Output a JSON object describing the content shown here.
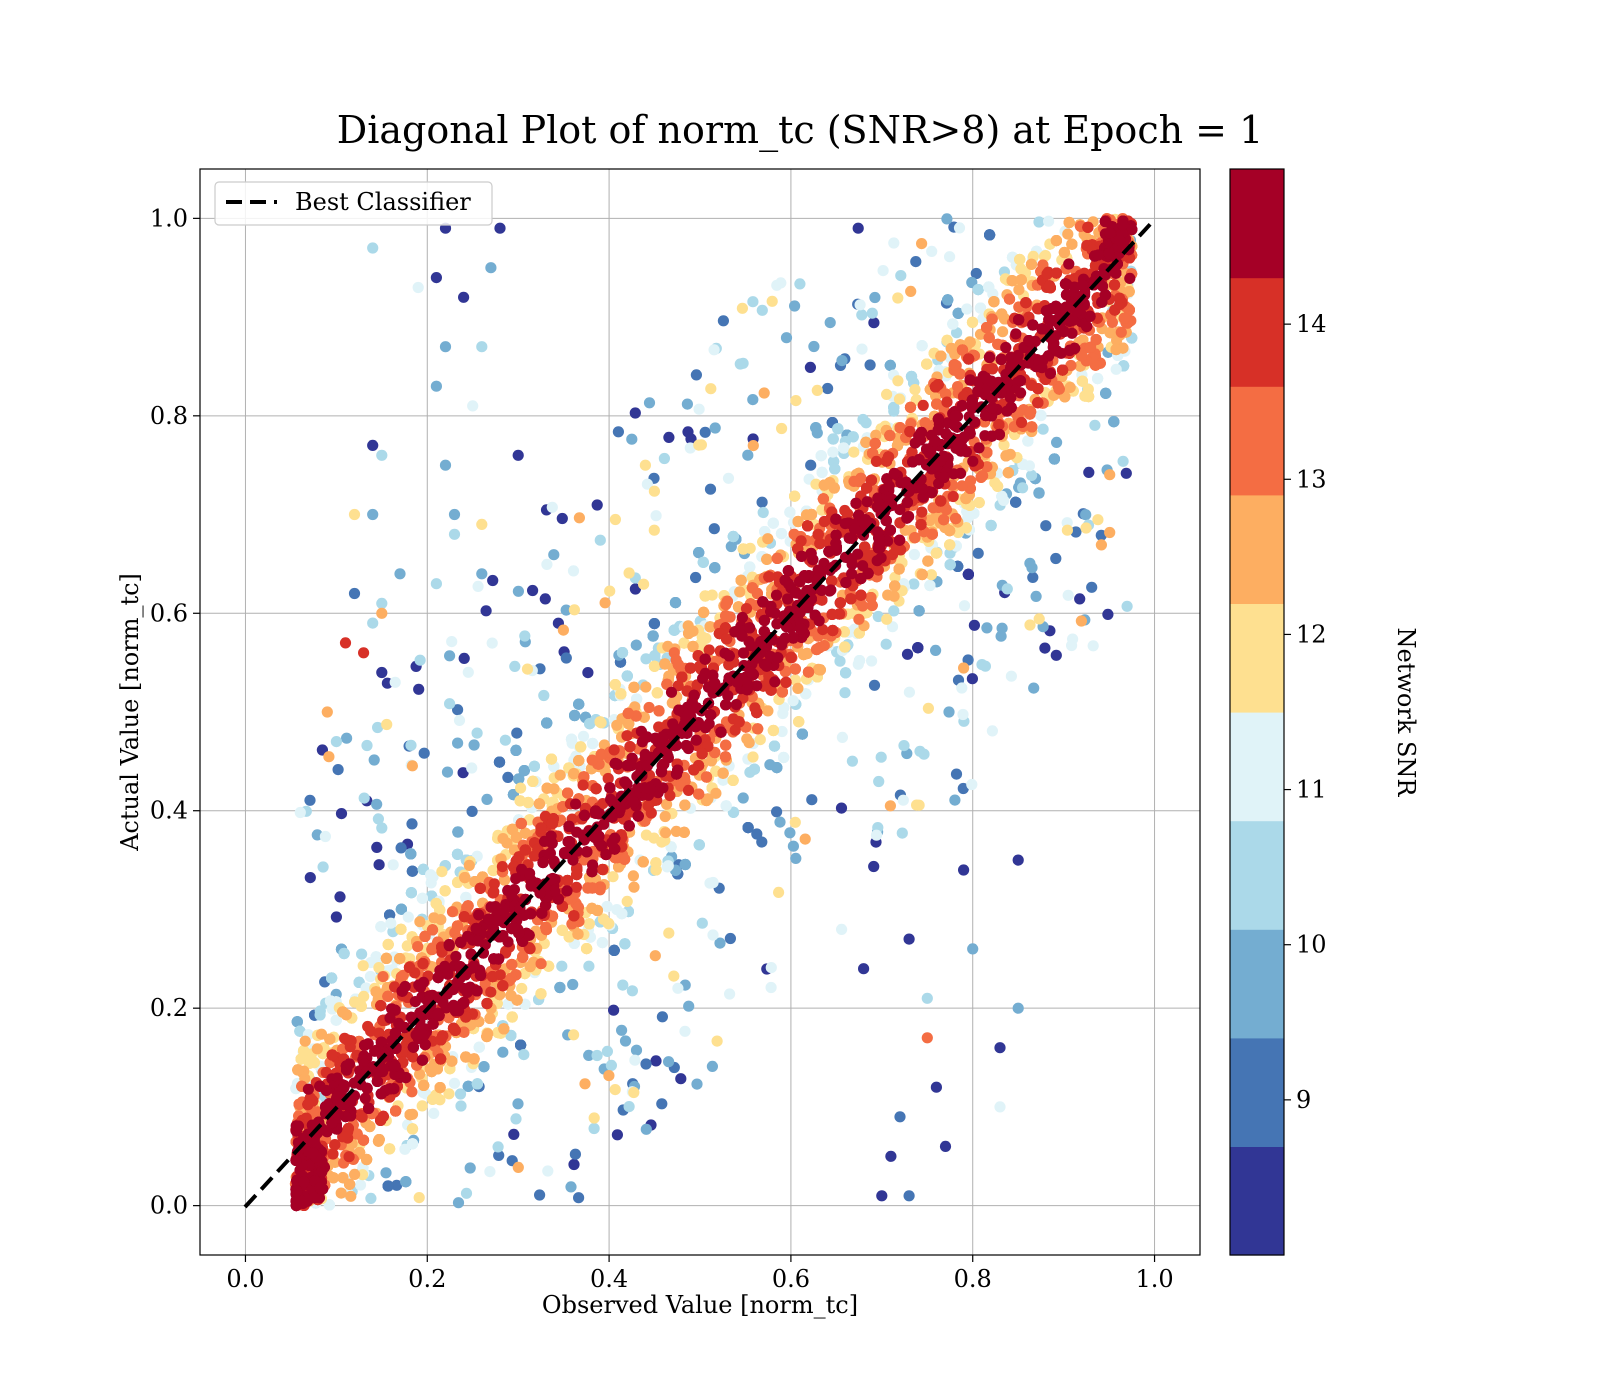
{
  "chart_data": {
    "type": "scatter",
    "title": "Diagonal Plot of norm_tc (SNR>8) at Epoch = 1",
    "xlabel": "Observed Value [norm_tc]",
    "ylabel": "Actual Value [norm_tc]",
    "xlim": [
      -0.05,
      1.05
    ],
    "ylim": [
      -0.05,
      1.05
    ],
    "xticks": [
      "0.0",
      "0.2",
      "0.4",
      "0.6",
      "0.8",
      "1.0"
    ],
    "yticks": [
      "0.0",
      "0.2",
      "0.4",
      "0.6",
      "0.8",
      "1.0"
    ],
    "grid": true,
    "legend": {
      "placement": "top-left",
      "entries": [
        "Best Classifier"
      ]
    },
    "reference_line": {
      "name": "Best Classifier",
      "x": [
        0,
        1
      ],
      "y": [
        0,
        1
      ],
      "style": "dashed",
      "color": "#000000"
    },
    "colorbar": {
      "label": "Network SNR",
      "range": [
        8,
        15
      ],
      "tick_values": [
        9,
        10,
        11,
        12,
        13,
        14
      ],
      "tick_labels": [
        "9",
        "10",
        "11",
        "12",
        "13",
        "14"
      ],
      "colors": [
        "#313695",
        "#4575b4",
        "#74add1",
        "#abd9e9",
        "#e0f3f8",
        "#fee090",
        "#fdae61",
        "#f46d43",
        "#d73027",
        "#a50026"
      ]
    },
    "series": [
      {
        "color_by": "Network SNR"
      }
    ],
    "points": [
      [
        0.14,
        0.97,
        10.5
      ],
      [
        0.22,
        0.99,
        8.2
      ],
      [
        0.28,
        0.99,
        8.3
      ],
      [
        0.21,
        0.94,
        8.4
      ],
      [
        0.24,
        0.92,
        8.2
      ],
      [
        0.19,
        0.93,
        10.9
      ],
      [
        0.27,
        0.95,
        9.8
      ],
      [
        0.22,
        0.87,
        9.4
      ],
      [
        0.26,
        0.87,
        10.2
      ],
      [
        0.21,
        0.83,
        10.1
      ],
      [
        0.14,
        0.77,
        8.3
      ],
      [
        0.15,
        0.76,
        10.6
      ],
      [
        0.25,
        0.81,
        10.8
      ],
      [
        0.22,
        0.75,
        9.6
      ],
      [
        0.3,
        0.76,
        8.4
      ],
      [
        0.14,
        0.7,
        9.9
      ],
      [
        0.12,
        0.7,
        12.2
      ],
      [
        0.23,
        0.7,
        9.5
      ],
      [
        0.26,
        0.69,
        11.5
      ],
      [
        0.23,
        0.68,
        10.7
      ],
      [
        0.26,
        0.64,
        9.5
      ],
      [
        0.17,
        0.64,
        9.5
      ],
      [
        0.21,
        0.63,
        10.4
      ],
      [
        0.12,
        0.62,
        9.0
      ],
      [
        0.15,
        0.61,
        10.6
      ],
      [
        0.15,
        0.6,
        12.5
      ],
      [
        0.14,
        0.59,
        10.3
      ],
      [
        0.11,
        0.57,
        13.8
      ],
      [
        0.13,
        0.56,
        14.2
      ],
      [
        0.15,
        0.54,
        8.4
      ],
      [
        0.09,
        0.5,
        12.5
      ],
      [
        0.1,
        0.47,
        10.7
      ],
      [
        0.8,
        0.26,
        10.1
      ],
      [
        0.75,
        0.21,
        10.4
      ],
      [
        0.85,
        0.2,
        9.6
      ],
      [
        0.75,
        0.17,
        13.6
      ],
      [
        0.83,
        0.16,
        8.3
      ],
      [
        0.76,
        0.12,
        8.2
      ],
      [
        0.83,
        0.1,
        11.3
      ],
      [
        0.77,
        0.06,
        8.5
      ],
      [
        0.79,
        0.34,
        8.4
      ],
      [
        0.85,
        0.35,
        8.3
      ],
      [
        0.73,
        0.27,
        8.6
      ],
      [
        0.68,
        0.24,
        8.5
      ],
      [
        0.7,
        0.01,
        8.3
      ],
      [
        0.73,
        0.01,
        9.3
      ],
      [
        0.72,
        0.09,
        9.2
      ],
      [
        0.71,
        0.05,
        8.4
      ]
    ],
    "density_band": "points concentrated along the diagonal, high SNR (red) near the line, low SNR (blue) spread away from it"
  }
}
